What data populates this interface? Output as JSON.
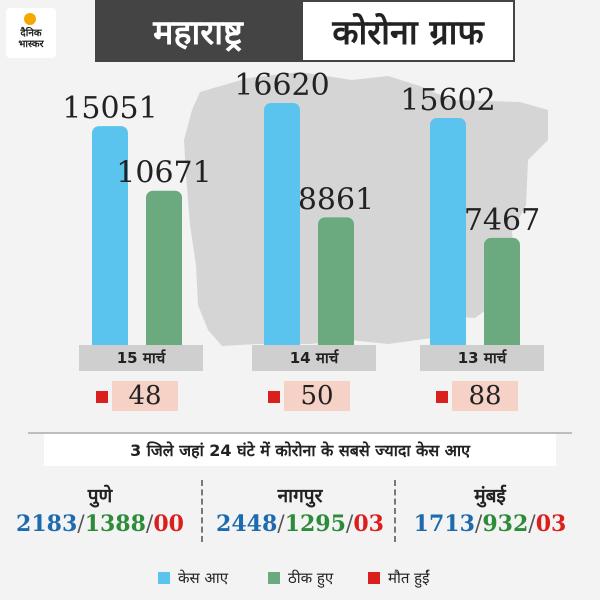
{
  "logo": {
    "line1": "दैनिक",
    "line2": "भास्कर",
    "icon": "sun-logo-icon"
  },
  "title": {
    "left": "महाराष्ट्र",
    "right": "कोरोना ग्राफ"
  },
  "colors": {
    "cases": "#5bc4ee",
    "recovered": "#6aaa7e",
    "deaths": "#d9201c",
    "map": "#d5d5d5"
  },
  "chart_data": {
    "type": "bar",
    "categories": [
      "15 मार्च",
      "14 मार्च",
      "13 मार्च"
    ],
    "series": [
      {
        "name": "केस आए",
        "values": [
          15051,
          16620,
          15602
        ]
      },
      {
        "name": "ठीक हुए",
        "values": [
          10671,
          8861,
          7467
        ]
      },
      {
        "name": "मौत हुईं",
        "values": [
          48,
          50,
          88
        ]
      }
    ],
    "legend_position": "bottom",
    "grid": false
  },
  "deaths_display": [
    "48",
    "50",
    "88"
  ],
  "districts": {
    "heading": "3 जिले जहां 24 घंटे में कोरोना के सबसे ज्यादा केस आए",
    "items": [
      {
        "name": "पुणे",
        "cases": "2183",
        "recovered": "1388",
        "deaths": "00"
      },
      {
        "name": "नागपुर",
        "cases": "2448",
        "recovered": "1295",
        "deaths": "03"
      },
      {
        "name": "मुंबई",
        "cases": "1713",
        "recovered": "932",
        "deaths": "03"
      }
    ],
    "separator": "/"
  },
  "legend": [
    {
      "label": "केस आए",
      "color": "#5bc4ee"
    },
    {
      "label": "ठीक हुए",
      "color": "#6aaa7e"
    },
    {
      "label": "मौत हुईं",
      "color": "#d9201c"
    }
  ]
}
